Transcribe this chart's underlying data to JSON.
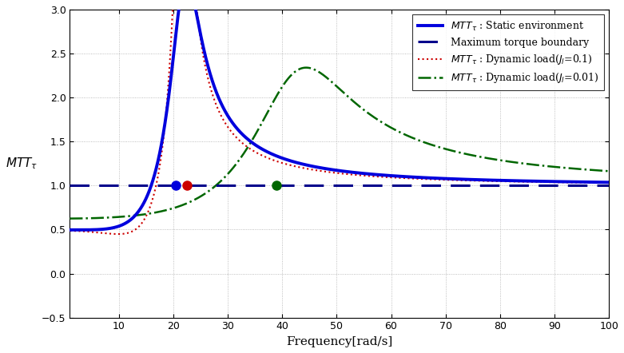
{
  "title": "",
  "xlabel": "Frequency[rad/s]",
  "ylabel": "$MTT_{\\tau}$",
  "xlim": [
    1,
    100
  ],
  "ylim": [
    -0.5,
    3
  ],
  "yticks": [
    -0.5,
    0,
    0.5,
    1.0,
    1.5,
    2.0,
    2.5,
    3.0
  ],
  "xticks": [
    10,
    20,
    30,
    40,
    50,
    60,
    70,
    80,
    90,
    100
  ],
  "background_color": "#ffffff",
  "grid_color": "#888888",
  "legend_labels": [
    "$MTT_{\\tau}$ : Static environment",
    "Maximum torque boundary",
    "$MTT_{\\tau}$ : Dynamic load($J_l$=0.1)",
    "$MTT_{\\tau}$ : Dynamic load($J_l$=0.01)"
  ],
  "marker_blue_x": 20.5,
  "marker_blue_y": 1.0,
  "marker_red_x": 22.5,
  "marker_red_y": 1.0,
  "marker_green_x": 39.0,
  "marker_green_y": 1.0,
  "blue_color": "#0000dd",
  "dashed_color": "#00008B",
  "red_color": "#cc0000",
  "green_color": "#006600"
}
